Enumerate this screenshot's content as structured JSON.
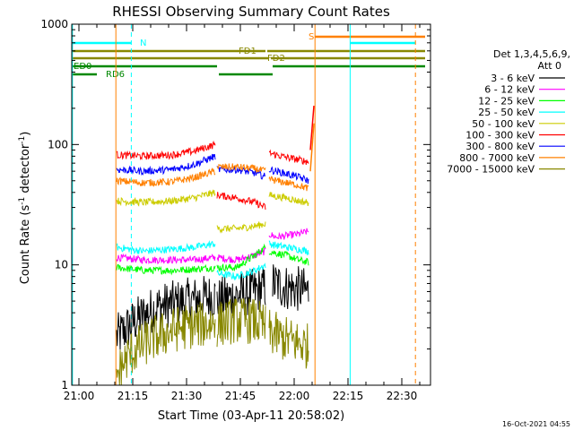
{
  "chart_data": {
    "type": "line",
    "title": "RHESSI Observing Summary Count Rates",
    "xlabel": "Start Time (03-Apr-11 20:58:02)",
    "ylabel_main": "Count Rate (s",
    "ylabel_sup1": "-1",
    "ylabel_mid": " detector",
    "ylabel_sup2": "-1",
    "ylabel_end": ")",
    "timestamp": "16-Oct-2021 04:55",
    "y_scale": "log",
    "ylim": [
      1,
      1000
    ],
    "xlim_minutes": [
      -2,
      98
    ],
    "x_ticks": [
      {
        "m": 0,
        "label": "21:00"
      },
      {
        "m": 15,
        "label": "21:15"
      },
      {
        "m": 30,
        "label": "21:30"
      },
      {
        "m": 45,
        "label": "21:45"
      },
      {
        "m": 60,
        "label": "22:00"
      },
      {
        "m": 75,
        "label": "22:15"
      },
      {
        "m": 90,
        "label": "22:30"
      }
    ],
    "y_ticks": [
      {
        "v": 1,
        "label": "1"
      },
      {
        "v": 10,
        "label": "10"
      },
      {
        "v": 100,
        "label": "100"
      },
      {
        "v": 1000,
        "label": "1000"
      }
    ],
    "legend": {
      "header1": "Det 1,3,4,5,6,9,",
      "header2": "Att 0",
      "placement": "right"
    },
    "series": [
      {
        "name": "3 - 6 keV",
        "color": "#000000",
        "segments": [
          {
            "x": [
              10.5,
              16,
              22,
              30,
              38
            ],
            "y": [
              2.5,
              3.5,
              4.5,
              5.0,
              5.5
            ]
          },
          {
            "x": [
              38.5,
              43,
              49,
              52
            ],
            "y": [
              5.0,
              5.5,
              6.0,
              6.5
            ]
          },
          {
            "x": [
              54,
              58,
              62,
              64
            ],
            "y": [
              7.0,
              6.5,
              6.2,
              6.0
            ]
          }
        ]
      },
      {
        "name": "6 - 12 keV",
        "color": "#ff00ff",
        "segments": [
          {
            "x": [
              10.5,
              18,
              26,
              32,
              38
            ],
            "y": [
              11.5,
              11.0,
              11.0,
              11.0,
              11.5
            ]
          },
          {
            "x": [
              38.5,
              44,
              49,
              52
            ],
            "y": [
              11.5,
              11.0,
              12.0,
              13.0
            ]
          },
          {
            "x": [
              53,
              55,
              58,
              61,
              64
            ],
            "y": [
              18.0,
              17.0,
              17.5,
              18.0,
              19.0
            ]
          }
        ]
      },
      {
        "name": "12 - 25 keV",
        "color": "#00ff00",
        "segments": [
          {
            "x": [
              10.5,
              18,
              26,
              32,
              38
            ],
            "y": [
              9.5,
              9.0,
              9.0,
              9.2,
              9.5
            ]
          },
          {
            "x": [
              38.5,
              44,
              49,
              52
            ],
            "y": [
              9.5,
              9.5,
              12.0,
              14.0
            ]
          },
          {
            "x": [
              53,
              55,
              58,
              61,
              64
            ],
            "y": [
              13.0,
              12.5,
              12.0,
              11.0,
              10.5
            ]
          }
        ]
      },
      {
        "name": "25 - 50 keV",
        "color": "#00ffff",
        "segments": [
          {
            "x": [
              10.5,
              18,
              26,
              32,
              38
            ],
            "y": [
              14.0,
              13.0,
              13.5,
              14.0,
              15.0
            ]
          },
          {
            "x": [
              38.5,
              44,
              49,
              52
            ],
            "y": [
              8.5,
              8.0,
              9.0,
              10.0
            ]
          },
          {
            "x": [
              53,
              55,
              58,
              61,
              64
            ],
            "y": [
              15.0,
              14.5,
              14.0,
              13.5,
              13.0
            ]
          }
        ]
      },
      {
        "name": "50 - 100 keV",
        "color": "#cccc00",
        "segments": [
          {
            "x": [
              10.5,
              18,
              26,
              32,
              38
            ],
            "y": [
              34,
              33,
              34,
              36,
              40
            ]
          },
          {
            "x": [
              38.5,
              44,
              49,
              52
            ],
            "y": [
              20,
              20,
              21,
              22
            ]
          },
          {
            "x": [
              53,
              55,
              58,
              61,
              64
            ],
            "y": [
              38,
              37,
              36,
              34,
              33
            ]
          }
        ]
      },
      {
        "name": "100 - 300 keV",
        "color": "#ff0000",
        "segments": [
          {
            "x": [
              10.5,
              18,
              26,
              32,
              38
            ],
            "y": [
              82,
              80,
              82,
              88,
              100
            ]
          },
          {
            "x": [
              38.5,
              44,
              49,
              52
            ],
            "y": [
              38,
              36,
              33,
              30
            ]
          },
          {
            "x": [
              53,
              55,
              58,
              61,
              64
            ],
            "y": [
              85,
              82,
              78,
              75,
              72
            ]
          }
        ]
      },
      {
        "name": "300 - 800 keV",
        "color": "#0000ff",
        "segments": [
          {
            "x": [
              10.5,
              18,
              26,
              32,
              38
            ],
            "y": [
              62,
              60,
              62,
              68,
              80
            ]
          },
          {
            "x": [
              38.5,
              44,
              49,
              52
            ],
            "y": [
              62,
              62,
              58,
              54
            ]
          },
          {
            "x": [
              53,
              55,
              58,
              61,
              64
            ],
            "y": [
              62,
              60,
              57,
              54,
              50
            ]
          }
        ]
      },
      {
        "name": "800 - 7000 keV",
        "color": "#ff8000",
        "segments": [
          {
            "x": [
              10.5,
              18,
              26,
              32,
              38
            ],
            "y": [
              50,
              48,
              49,
              53,
              60
            ]
          },
          {
            "x": [
              38.5,
              44,
              49,
              52
            ],
            "y": [
              65,
              65,
              63,
              60
            ]
          },
          {
            "x": [
              53,
              55,
              58,
              61,
              64
            ],
            "y": [
              52,
              50,
              48,
              46,
              43
            ]
          }
        ]
      },
      {
        "name": "7000 - 15000 keV",
        "color": "#888800",
        "segments": [
          {
            "x": [
              10.5,
              14,
              20,
              28,
              38
            ],
            "y": [
              1.2,
              1.8,
              2.4,
              3.0,
              3.3
            ]
          },
          {
            "x": [
              38.5,
              44,
              49,
              52
            ],
            "y": [
              3.2,
              3.5,
              3.4,
              3.0
            ]
          },
          {
            "x": [
              53,
              56,
              60,
              64
            ],
            "y": [
              2.8,
              2.5,
              2.3,
              2.1
            ]
          }
        ]
      }
    ],
    "flare_spike": [
      {
        "series": "100 - 300 keV",
        "x": [
          64.5,
          65.5
        ],
        "y": [
          90,
          210
        ]
      },
      {
        "series": "800 - 7000 keV",
        "x": [
          64.5,
          65.5
        ],
        "y": [
          60,
          150
        ]
      }
    ],
    "vlines": [
      {
        "m": 10.3,
        "color": "#ff8000",
        "style": "solid"
      },
      {
        "m": 14.6,
        "color": "#00ffff",
        "style": "dashed"
      },
      {
        "m": 65.8,
        "color": "#ff8000",
        "style": "solid"
      },
      {
        "m": 75.6,
        "color": "#00ffff",
        "style": "solid"
      },
      {
        "m": 93.8,
        "color": "#ff8000",
        "style": "dashed"
      },
      {
        "m": -1.8,
        "color": "#00ffff",
        "style": "solid"
      }
    ],
    "flag_bars": [
      {
        "name": "N",
        "color": "#00ffff",
        "segments": [
          [
            -2,
            14.6
          ],
          [
            75.6,
            93.8
          ]
        ],
        "label_m": 16.5
      },
      {
        "name": "S",
        "color": "#ff8000",
        "segments": [
          [
            65.8,
            96.5
          ]
        ],
        "label_m": 63.5
      },
      {
        "name": "FD1",
        "color": "#888800",
        "segments": [
          [
            -2,
            52
          ],
          [
            52.5,
            96.5
          ]
        ],
        "label_m": 44
      },
      {
        "name": "FD2",
        "color": "#888800",
        "segments": [
          [
            -2,
            53
          ],
          [
            53.5,
            96.5
          ]
        ],
        "label_m": 52
      },
      {
        "name": "ED0",
        "color": "#008800",
        "segments": [
          [
            -2,
            38.5
          ],
          [
            54,
            96.5
          ]
        ],
        "label_m": -2
      },
      {
        "name": "RD6",
        "color": "#008800",
        "segments": [
          [
            -2,
            5
          ],
          [
            39,
            54
          ]
        ],
        "label_m": 7
      }
    ]
  }
}
